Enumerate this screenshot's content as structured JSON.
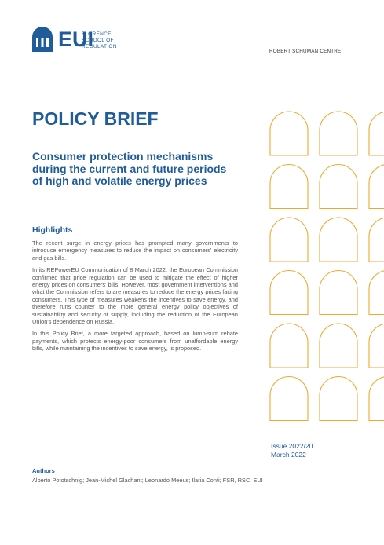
{
  "header": {
    "logo": "EUI",
    "school": [
      "FLORENCE",
      "SCHOOL OF",
      "REGULATION"
    ],
    "centre": "ROBERT SCHUMAN CENTRE"
  },
  "title": "POLICY BRIEF",
  "subtitle": "Consumer protection mechanisms during the current and future periods of high and volatile energy prices",
  "highlights": {
    "heading": "Highlights",
    "paragraphs": [
      "The recent surge in energy prices has prompted many governments to introduce emergency measures to reduce the impact on consumers' electricity and gas bills.",
      "In its REPowerEU Communication of 8 March 2022, the European Commission confirmed that price regulation can be used to mitigate the effect of higher energy prices on consumers' bills. However, most government interventions and what the Commission refers to are measures to reduce the energy prices facing consumers. This type of measures weakens the incentives to save energy, and therefore runs counter to the more general energy policy objectives of sustainability and security of supply, including the reduction of the European Union's dependence on Russia.",
      "In this Policy Brief, a more targeted approach, based on lump-sum rebate payments, which protects energy-poor consumers from unaffordable energy bills, while maintaining the incentives to save energy, is proposed."
    ]
  },
  "issue": "Issue 2022/20",
  "date": "March 2022",
  "authors": {
    "heading": "Authors",
    "names": "Alberto Pototschnig; Jean-Michel Glachant; Leonardo Meeus; Ilaria Conti; FSR, RSC, EUI"
  }
}
